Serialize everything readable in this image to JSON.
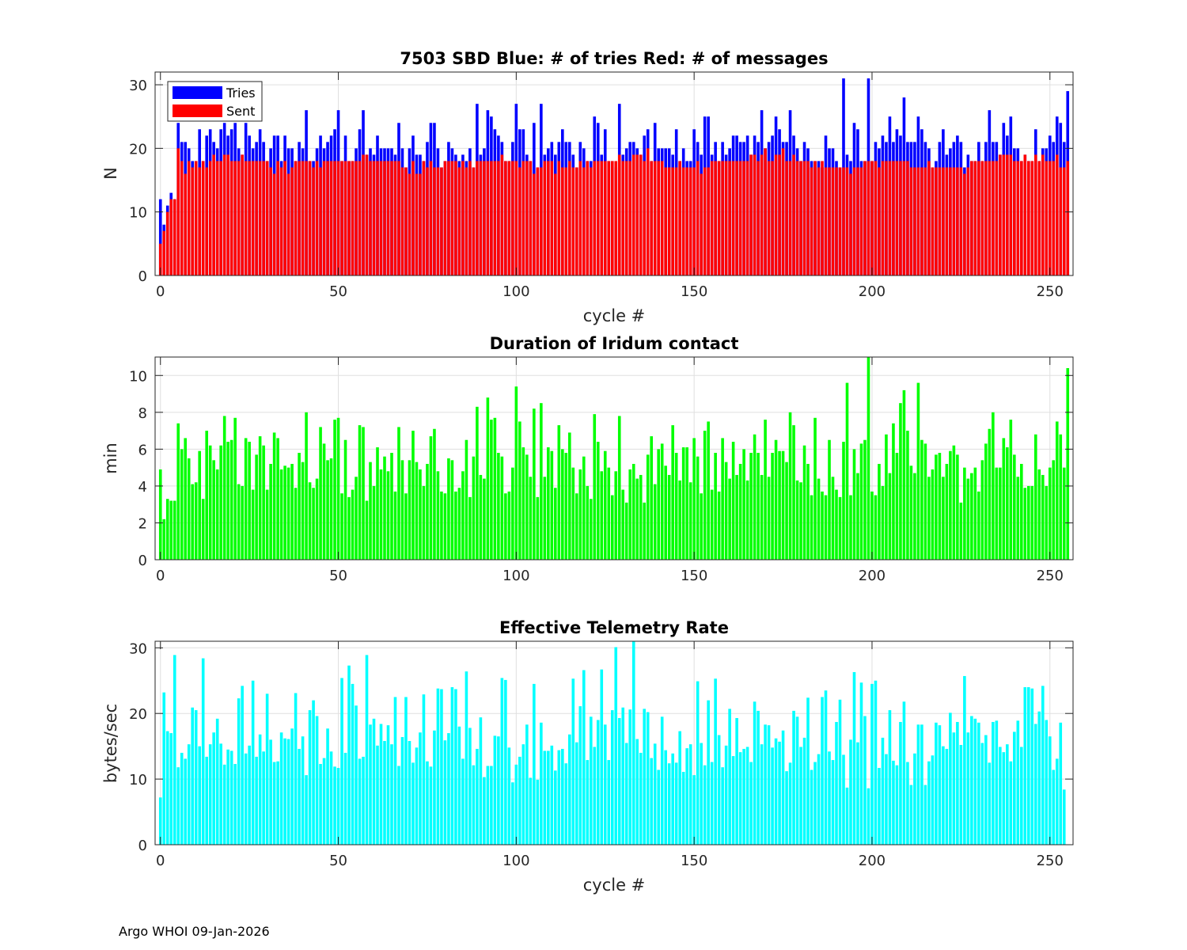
{
  "footer": "Argo WHOI 09-Jan-2026",
  "chart_data": [
    {
      "type": "bar",
      "stacking": "overlay",
      "title": "7503 SBD  Blue: # of tries   Red: # of messages",
      "xlabel": "cycle #",
      "ylabel": "N",
      "xlim": [
        -1.5,
        256.5
      ],
      "ylim": [
        0,
        32
      ],
      "xticks": [
        0,
        50,
        100,
        150,
        200,
        250
      ],
      "yticks": [
        0,
        10,
        20,
        30
      ],
      "grid": true,
      "legend": {
        "placement": "top-left",
        "entries": [
          "Tries",
          "Sent"
        ]
      },
      "series": [
        {
          "name": "Tries",
          "color": "#0000ff",
          "values": [
            12,
            8,
            11,
            13,
            12,
            24,
            21,
            21,
            20,
            18,
            18,
            23,
            18,
            22,
            23,
            21,
            20,
            23,
            24,
            22,
            23,
            24,
            20,
            19,
            24,
            22,
            20,
            21,
            23,
            21,
            18,
            20,
            22,
            22,
            18,
            22,
            20,
            20,
            18,
            21,
            20,
            26,
            18,
            18,
            20,
            22,
            20,
            21,
            22,
            23,
            26,
            18,
            22,
            18,
            18,
            20,
            23,
            26,
            19,
            20,
            19,
            22,
            20,
            20,
            20,
            20,
            19,
            24,
            20,
            17,
            20,
            22,
            19,
            19,
            18,
            21,
            24,
            24,
            20,
            17,
            18,
            21,
            20,
            19,
            18,
            19,
            18,
            20,
            17,
            27,
            19,
            20,
            26,
            25,
            23,
            22,
            21,
            18,
            18,
            21,
            27,
            23,
            23,
            19,
            18,
            24,
            17,
            27,
            19,
            20,
            21,
            19,
            21,
            23,
            21,
            21,
            19,
            17,
            21,
            20,
            18,
            18,
            25,
            24,
            19,
            23,
            18,
            18,
            17,
            27,
            19,
            20,
            21,
            21,
            20,
            19,
            22,
            23,
            18,
            24,
            20,
            20,
            20,
            20,
            19,
            23,
            18,
            20,
            18,
            18,
            23,
            21,
            19,
            25,
            25,
            19,
            21,
            18,
            21,
            19,
            20,
            22,
            22,
            21,
            21,
            22,
            19,
            22,
            21,
            26,
            20,
            21,
            22,
            25,
            23,
            21,
            21,
            26,
            22,
            20,
            18,
            21,
            20,
            18,
            18,
            18,
            17,
            22,
            20,
            20,
            18,
            17,
            31,
            19,
            18,
            24,
            23,
            18,
            18,
            31,
            18,
            21,
            20,
            22,
            21,
            25,
            21,
            23,
            22,
            28,
            21,
            21,
            21,
            25,
            23,
            21,
            20,
            17,
            18,
            21,
            23,
            19,
            20,
            21,
            22,
            21,
            17,
            19,
            18,
            18,
            21,
            18,
            21,
            26,
            21,
            21,
            19,
            24,
            22,
            25,
            20,
            20,
            18,
            19,
            18,
            18,
            23,
            18,
            20,
            20,
            22,
            21,
            25,
            24,
            21,
            29
          ]
        },
        {
          "name": "Sent",
          "color": "#ff0000",
          "values": [
            5,
            7,
            10,
            12,
            12,
            20,
            18,
            16,
            18,
            17,
            18,
            17,
            18,
            17,
            18,
            19,
            18,
            18,
            19,
            19,
            18,
            18,
            18,
            19,
            18,
            18,
            18,
            18,
            18,
            18,
            18,
            17,
            16,
            18,
            17,
            18,
            16,
            17,
            18,
            18,
            18,
            18,
            18,
            17,
            18,
            17,
            18,
            18,
            18,
            18,
            18,
            18,
            18,
            18,
            18,
            18,
            18,
            19,
            19,
            18,
            18,
            18,
            18,
            18,
            18,
            18,
            18,
            18,
            17,
            17,
            16,
            18,
            16,
            16,
            18,
            17,
            18,
            17,
            17,
            17,
            18,
            18,
            18,
            18,
            17,
            18,
            17,
            18,
            17,
            18,
            18,
            18,
            18,
            18,
            18,
            18,
            19,
            18,
            18,
            18,
            18,
            17,
            18,
            18,
            18,
            16,
            17,
            17,
            18,
            18,
            18,
            16,
            18,
            17,
            17,
            18,
            17,
            17,
            18,
            17,
            18,
            17,
            18,
            18,
            18,
            18,
            18,
            18,
            18,
            19,
            18,
            18,
            18,
            19,
            19,
            19,
            18,
            20,
            18,
            18,
            18,
            18,
            17,
            17,
            17,
            17,
            18,
            17,
            17,
            17,
            17,
            18,
            16,
            17,
            17,
            18,
            18,
            18,
            18,
            18,
            18,
            18,
            18,
            18,
            18,
            18,
            19,
            19,
            18,
            19,
            20,
            18,
            18,
            19,
            19,
            20,
            18,
            18,
            19,
            18,
            18,
            18,
            18,
            17,
            18,
            17,
            18,
            17,
            17,
            17,
            17,
            17,
            17,
            17,
            16,
            17,
            17,
            17,
            18,
            18,
            18,
            18,
            17,
            18,
            18,
            18,
            18,
            18,
            18,
            18,
            18,
            17,
            17,
            17,
            17,
            17,
            18,
            17,
            17,
            17,
            17,
            17,
            17,
            17,
            17,
            17,
            16,
            17,
            18,
            18,
            18,
            18,
            18,
            18,
            18,
            18,
            19,
            19,
            19,
            19,
            18,
            18,
            18,
            19,
            18,
            18,
            19,
            18,
            19,
            18,
            18,
            18,
            19,
            17,
            17,
            18
          ]
        }
      ]
    },
    {
      "type": "bar",
      "title": "Duration of Iridum contact",
      "xlabel": "",
      "ylabel": "min",
      "xlim": [
        -1.5,
        256.5
      ],
      "ylim": [
        0,
        11
      ],
      "xticks": [
        0,
        50,
        100,
        150,
        200,
        250
      ],
      "yticks": [
        0,
        2,
        4,
        6,
        8,
        10
      ],
      "grid": true,
      "series": [
        {
          "name": "Duration",
          "color": "#00ff00",
          "values": [
            4.9,
            2.2,
            3.3,
            3.2,
            3.2,
            7.4,
            6.0,
            6.6,
            5.5,
            4.1,
            4.2,
            5.9,
            3.3,
            7.0,
            6.2,
            5.4,
            4.9,
            6.2,
            7.8,
            6.4,
            6.5,
            7.7,
            4.1,
            4.0,
            6.6,
            6.4,
            3.8,
            5.7,
            6.7,
            6.2,
            3.8,
            5.2,
            6.9,
            6.6,
            4.9,
            5.1,
            5.0,
            5.2,
            3.9,
            5.8,
            5.3,
            8.0,
            4.2,
            3.9,
            4.4,
            7.2,
            6.3,
            5.4,
            5.5,
            7.6,
            7.7,
            3.6,
            6.5,
            3.4,
            3.8,
            4.5,
            7.3,
            7.2,
            3.2,
            5.3,
            4.0,
            6.1,
            4.9,
            5.6,
            4.8,
            5.8,
            3.7,
            7.2,
            5.4,
            3.6,
            5.4,
            7.0,
            5.3,
            4.9,
            4.0,
            5.2,
            6.7,
            7.1,
            4.8,
            3.7,
            3.6,
            5.5,
            5.4,
            3.7,
            3.9,
            4.8,
            6.5,
            3.4,
            5.6,
            8.3,
            4.6,
            4.4,
            8.8,
            7.6,
            7.7,
            5.8,
            5.6,
            3.6,
            3.7,
            5.0,
            9.4,
            7.5,
            6.1,
            5.7,
            4.5,
            8.2,
            3.4,
            8.5,
            4.5,
            6.1,
            5.9,
            3.9,
            7.3,
            6.0,
            5.8,
            6.9,
            5.0,
            3.6,
            4.9,
            5.6,
            4.0,
            3.3,
            7.9,
            6.4,
            4.8,
            5.9,
            5.0,
            3.5,
            4.8,
            7.8,
            3.8,
            3.1,
            4.9,
            5.2,
            4.4,
            4.6,
            3.1,
            5.7,
            6.7,
            4.1,
            6.0,
            6.3,
            5.1,
            4.6,
            7.3,
            5.8,
            4.3,
            6.1,
            6.1,
            4.2,
            6.6,
            5.6,
            3.6,
            7.0,
            7.5,
            3.8,
            5.8,
            3.7,
            6.6,
            5.3,
            4.4,
            6.4,
            4.6,
            5.2,
            6.0,
            4.3,
            5.8,
            6.8,
            5.8,
            4.6,
            7.6,
            4.5,
            5.8,
            6.5,
            5.9,
            5.9,
            5.3,
            8.0,
            7.3,
            4.3,
            4.2,
            6.2,
            5.2,
            3.5,
            7.7,
            4.4,
            3.7,
            3.5,
            6.5,
            4.5,
            3.8,
            3.4,
            6.4,
            9.6,
            3.5,
            6.0,
            4.7,
            6.3,
            6.5,
            11.0,
            3.7,
            3.5,
            5.2,
            4.0,
            6.8,
            4.7,
            7.4,
            5.8,
            8.5,
            9.2,
            7.0,
            5.1,
            4.7,
            9.6,
            6.5,
            6.3,
            4.5,
            4.9,
            5.7,
            5.8,
            4.5,
            5.2,
            5.9,
            6.2,
            5.7,
            3.1,
            5.0,
            4.4,
            4.7,
            5.0,
            3.7,
            5.4,
            6.3,
            7.1,
            8.0,
            5.0,
            5.0,
            6.6,
            6.1,
            7.6,
            5.7,
            4.5,
            5.2,
            3.9,
            4.0,
            4.0,
            6.8,
            4.9,
            4.6,
            4.0,
            5.0,
            5.4,
            7.5,
            6.8,
            5.0,
            10.4
          ]
        }
      ]
    },
    {
      "type": "bar",
      "title": "Effective Telemetry Rate",
      "xlabel": "cycle #",
      "ylabel": "bytes/sec",
      "xlim": [
        -1.5,
        256.5
      ],
      "ylim": [
        0,
        31
      ],
      "xticks": [
        0,
        50,
        100,
        150,
        200,
        250
      ],
      "yticks": [
        0,
        10,
        20,
        30
      ],
      "grid": true,
      "series": [
        {
          "name": "Rate",
          "color": "#00ffff",
          "values": [
            7.2,
            23.2,
            17.3,
            17.0,
            28.9,
            11.8,
            14.0,
            13.1,
            15.3,
            20.9,
            20.5,
            15.0,
            28.4,
            13.4,
            15.3,
            17.1,
            19.2,
            15.4,
            12.2,
            14.5,
            14.3,
            12.3,
            22.3,
            24.2,
            13.9,
            15.1,
            25.0,
            13.4,
            16.8,
            14.2,
            23.0,
            16.0,
            12.6,
            12.7,
            17.1,
            16.2,
            16.1,
            17.7,
            23.1,
            14.6,
            16.5,
            10.6,
            20.5,
            22.0,
            19.6,
            12.3,
            13.2,
            17.7,
            14.2,
            11.9,
            11.7,
            25.4,
            14.0,
            27.3,
            24.5,
            21.2,
            13.1,
            13.4,
            28.9,
            18.3,
            19.2,
            15.1,
            18.4,
            15.8,
            18.2,
            15.3,
            22.5,
            12.0,
            16.4,
            22.5,
            15.8,
            12.5,
            14.8,
            17.1,
            22.9,
            12.7,
            11.9,
            17.4,
            23.8,
            23.7,
            15.9,
            17.0,
            24.0,
            23.7,
            18.0,
            13.1,
            26.4,
            17.8,
            12.1,
            14.6,
            19.4,
            10.3,
            12.0,
            12.0,
            16.6,
            16.5,
            25.4,
            25.1,
            14.8,
            9.5,
            12.2,
            13.4,
            15.3,
            18.3,
            10.2,
            24.5,
            9.9,
            18.6,
            14.3,
            14.3,
            15.1,
            11.3,
            14.4,
            14.6,
            12.4,
            16.8,
            25.3,
            15.6,
            21.1,
            26.6,
            12.9,
            19.5,
            14.9,
            19.0,
            26.7,
            18.3,
            12.9,
            20.5,
            30.1,
            19.3,
            20.9,
            15.5,
            20.6,
            31.0,
            16.1,
            14.0,
            20.7,
            20.2,
            13.2,
            15.4,
            11.4,
            19.5,
            14.4,
            12.4,
            13.9,
            12.5,
            17.3,
            11.1,
            14.7,
            15.3,
            10.6,
            24.9,
            15.5,
            12.1,
            22.0,
            12.6,
            25.3,
            16.7,
            11.8,
            15.1,
            20.7,
            13.5,
            19.3,
            14.1,
            14.6,
            14.9,
            12.6,
            21.8,
            20.4,
            15.3,
            18.3,
            18.2,
            14.8,
            16.2,
            15.7,
            17.4,
            11.2,
            12.5,
            20.4,
            19.5,
            14.9,
            16.3,
            22.4,
            11.4,
            12.6,
            13.8,
            22.5,
            23.5,
            14.2,
            12.9,
            18.7,
            22.1,
            13.7,
            8.7,
            16.0,
            26.3,
            15.6,
            24.7,
            19.6,
            8.6,
            24.5,
            25.0,
            11.7,
            16.3,
            13.8,
            20.5,
            12.8,
            12.1,
            18.7,
            21.8,
            12.6,
            9.1,
            13.9,
            18.3,
            18.3,
            9.1,
            12.7,
            13.6,
            18.6,
            18.2,
            15.0,
            14.6,
            20.1,
            17.1,
            18.7,
            15.2,
            25.7,
            17.1,
            19.6,
            19.2,
            18.6,
            15.5,
            16.7,
            12.5,
            18.7,
            18.9,
            14.9,
            14.1,
            15.3,
            12.7,
            17.2,
            18.9,
            14.9,
            24.0,
            24.0,
            23.8,
            18.4,
            20.3,
            24.2,
            19.0,
            16.5,
            11.4,
            13.1,
            18.6,
            8.4,
            0.0
          ]
        }
      ]
    }
  ]
}
